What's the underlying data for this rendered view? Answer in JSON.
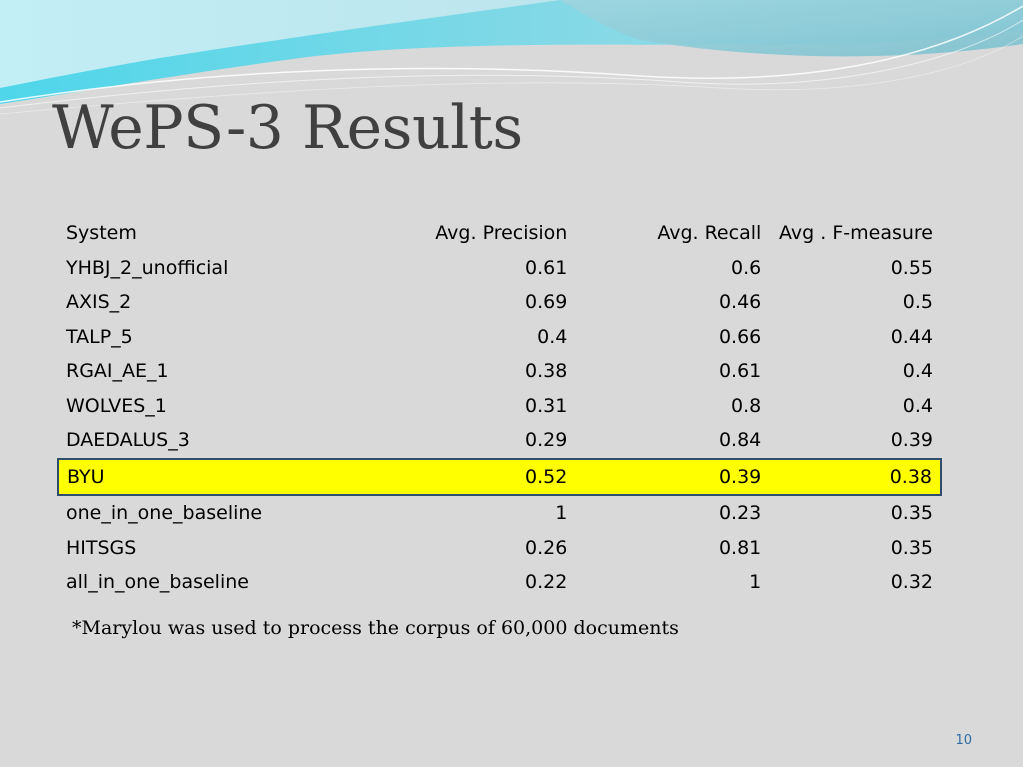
{
  "slide": {
    "title": "WePS-3 Results",
    "footnote": "*Marylou was used to process the corpus of 60,000 documents",
    "page_number": "10"
  },
  "table": {
    "headers": {
      "system": "System",
      "precision": "Avg. Precision",
      "recall": "Avg. Recall",
      "fmeasure": "Avg . F-measure"
    },
    "highlight_row": "BYU",
    "highlight_color": "#ffff00",
    "rows": [
      {
        "system": "YHBJ_2_unofficial",
        "precision": "0.61",
        "recall": "0.6",
        "fmeasure": "0.55"
      },
      {
        "system": "AXIS_2",
        "precision": "0.69",
        "recall": "0.46",
        "fmeasure": "0.5"
      },
      {
        "system": "TALP_5",
        "precision": "0.4",
        "recall": "0.66",
        "fmeasure": "0.44"
      },
      {
        "system": "RGAI_AE_1",
        "precision": "0.38",
        "recall": "0.61",
        "fmeasure": "0.4"
      },
      {
        "system": "WOLVES_1",
        "precision": "0.31",
        "recall": "0.8",
        "fmeasure": "0.4"
      },
      {
        "system": "DAEDALUS_3",
        "precision": "0.29",
        "recall": "0.84",
        "fmeasure": "0.39"
      },
      {
        "system": "BYU",
        "precision": "0.52",
        "recall": "0.39",
        "fmeasure": "0.38"
      },
      {
        "system": "one_in_one_baseline",
        "precision": "1",
        "recall": "0.23",
        "fmeasure": "0.35"
      },
      {
        "system": "HITSGS",
        "precision": "0.26",
        "recall": "0.81",
        "fmeasure": "0.35"
      },
      {
        "system": "all_in_one_baseline",
        "precision": "0.22",
        "recall": "1",
        "fmeasure": "0.32"
      }
    ]
  },
  "theme": {
    "background": "#d9d9d9",
    "title_color": "#404040",
    "wave_light": "#c6e6ee",
    "wave_cyan": "#5cd2e6",
    "wave_teal": "#8ccbd6",
    "page_number_color": "#2e6aa6"
  }
}
